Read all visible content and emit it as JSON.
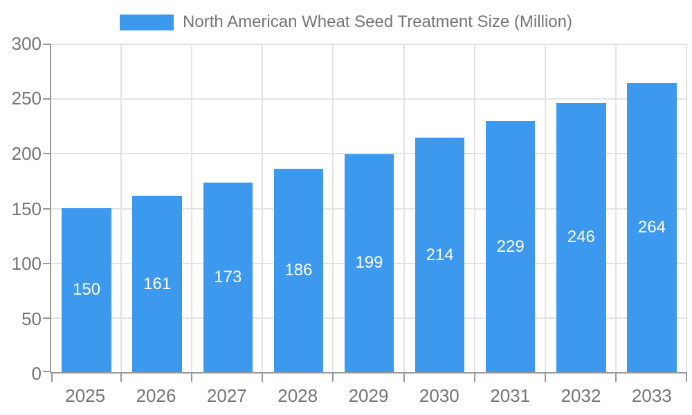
{
  "chart_data": {
    "type": "bar",
    "title": "North American Wheat Seed Treatment Size (Million)",
    "categories": [
      "2025",
      "2026",
      "2027",
      "2028",
      "2029",
      "2030",
      "2031",
      "2032",
      "2033"
    ],
    "values": [
      150,
      161,
      173,
      186,
      199,
      214,
      229,
      246,
      264
    ],
    "xlabel": "",
    "ylabel": "",
    "ylim": [
      0,
      300
    ],
    "yticks": [
      0,
      50,
      100,
      150,
      200,
      250,
      300
    ],
    "grid": true,
    "legend_position": "top-center",
    "bar_labels_visible": true
  },
  "colors": {
    "accent": "#3D99EE",
    "bar_label": "#FFFFFF",
    "axis_line": "#999999",
    "grid_line": "#E3E3E3",
    "axis_text": "#757575",
    "legend_text": "#757575",
    "background": "#FFFFFF"
  }
}
